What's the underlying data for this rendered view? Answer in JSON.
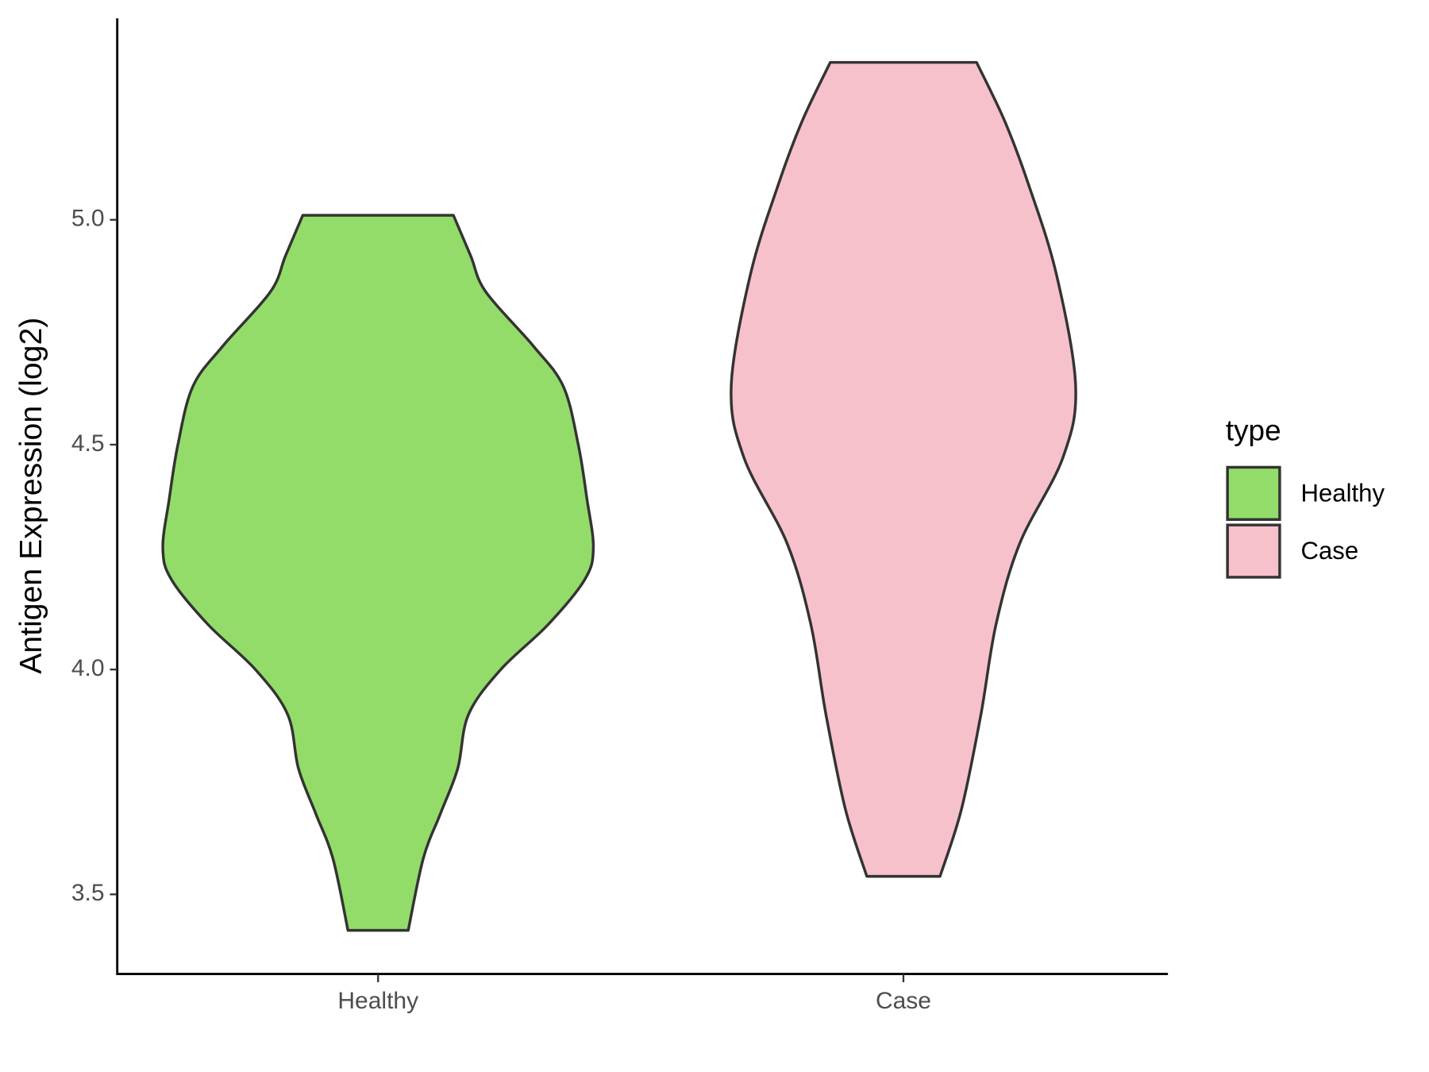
{
  "chart_data": {
    "type": "violin",
    "y_label": "Antigen Expression (log2)",
    "categories": [
      "Healthy",
      "Case"
    ],
    "ylim": [
      3.323,
      5.448
    ],
    "yticks": [
      {
        "value": 3.5,
        "label": "3.5"
      },
      {
        "value": 4,
        "label": "4.0"
      },
      {
        "value": 4.5,
        "label": "4.5"
      },
      {
        "value": 5,
        "label": "5.0"
      }
    ],
    "legend_title": "type",
    "legend_position": "right",
    "series": [
      {
        "name": "Healthy",
        "color": "#93dc6a",
        "y": [
          5.01,
          4.92,
          4.84,
          4.72,
          4.63,
          4.5,
          4.38,
          4.27,
          4.2,
          4.1,
          4,
          3.9,
          3.78,
          3.68,
          3.58,
          3.42
        ],
        "density": [
          0.35,
          0.43,
          0.5,
          0.72,
          0.86,
          0.93,
          0.97,
          1,
          0.96,
          0.79,
          0.57,
          0.42,
          0.37,
          0.29,
          0.21,
          0.14
        ]
      },
      {
        "name": "Case",
        "color": "#f7c1cc",
        "y": [
          5.35,
          5.22,
          5.08,
          4.88,
          4.63,
          4.47,
          4.28,
          4.1,
          3.9,
          3.69,
          3.54
        ],
        "density": [
          0.34,
          0.47,
          0.58,
          0.71,
          0.8,
          0.74,
          0.54,
          0.43,
          0.36,
          0.27,
          0.17
        ]
      }
    ]
  }
}
